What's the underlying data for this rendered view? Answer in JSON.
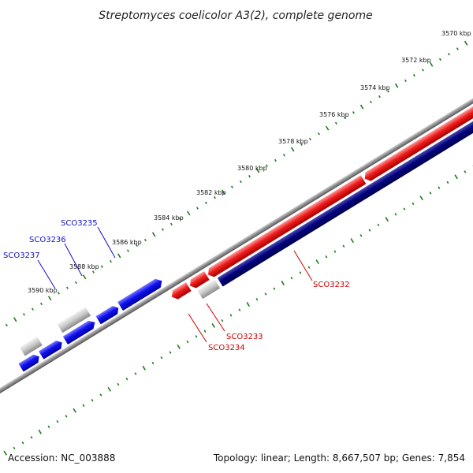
{
  "title": "Streptomyces coelicolor A3(2), complete genome",
  "footer": {
    "accession": "Accession: NC_003888",
    "topology": "Topology: linear; Length: 8,667,507 bp; Genes: 7,854"
  },
  "colors": {
    "strand_top": "#ee1c1c",
    "strand_bottom": "#000080",
    "upper_genes": "#1010ee",
    "pseudo_gray": "#c8c8c8",
    "ticks": "#1f7a1f",
    "label_red": "#cc0000",
    "label_blue": "#1010cc"
  },
  "scale_labels": [
    "3570 kbp",
    "3572 kbp",
    "3574 kbp",
    "3576 kbp",
    "3578 kbp",
    "3580 kbp",
    "3582 kbp",
    "3584 kbp",
    "3586 kbp",
    "3588 kbp",
    "3590 kbp"
  ],
  "gene_labels": [
    {
      "name": "SCO3232",
      "color": "red"
    },
    {
      "name": "SCO3233",
      "color": "red"
    },
    {
      "name": "SCO3234",
      "color": "red"
    },
    {
      "name": "SCO3235",
      "color": "blue"
    },
    {
      "name": "SCO3236",
      "color": "blue"
    },
    {
      "name": "SCO3237",
      "color": "blue"
    }
  ]
}
